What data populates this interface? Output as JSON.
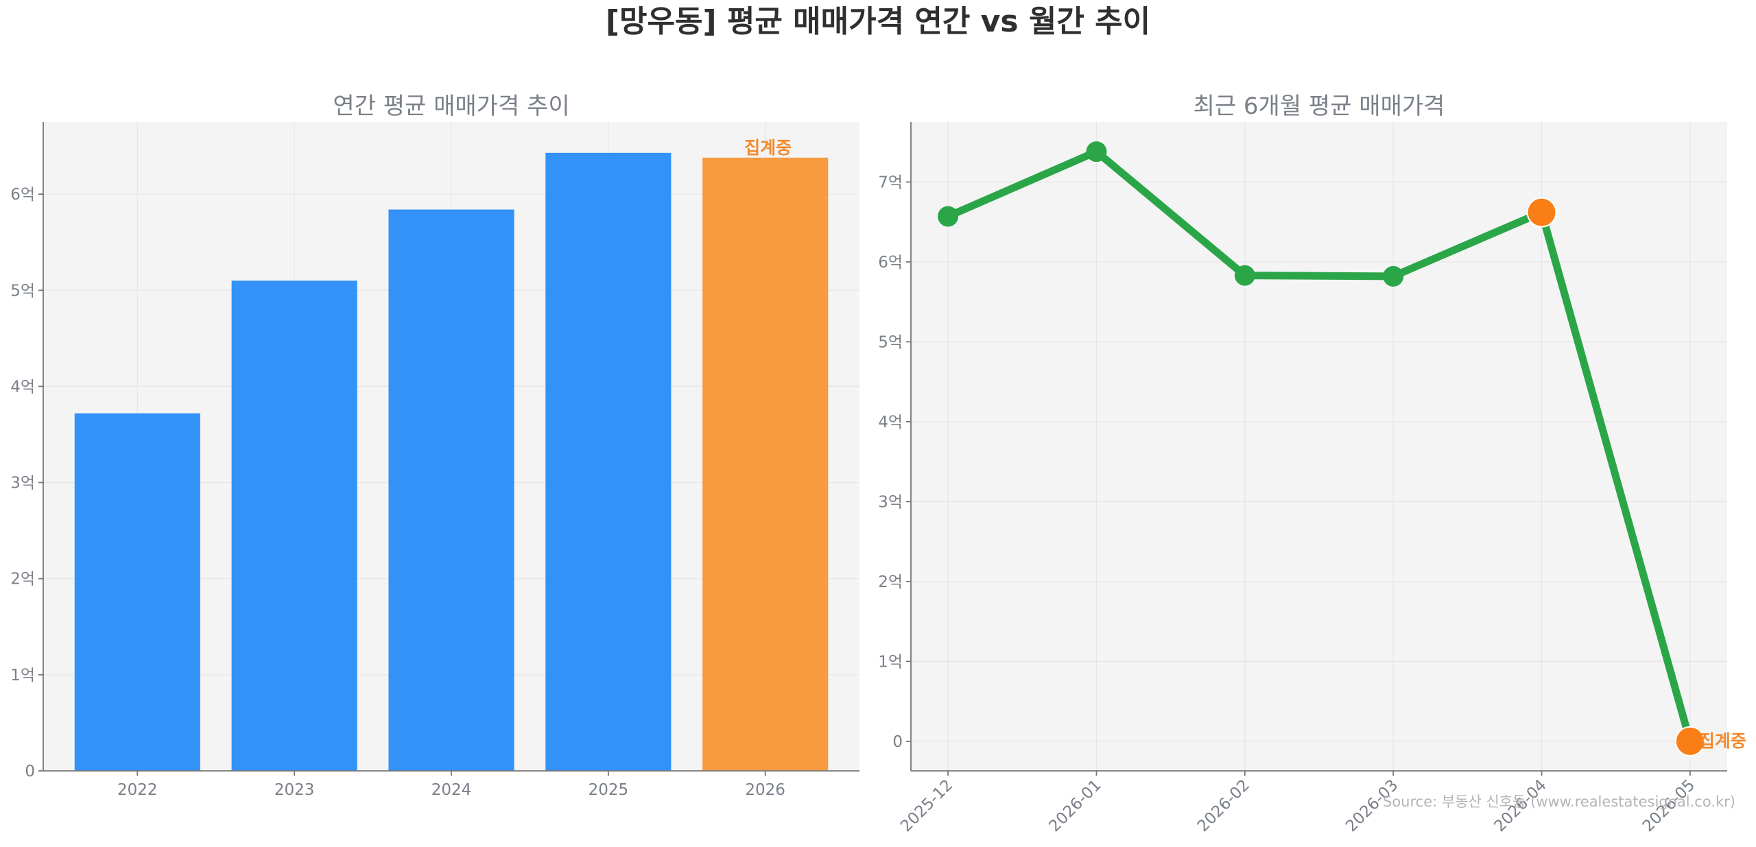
{
  "title": "[망우동] 평균 매매가격 연간 vs 월간 추이",
  "colors": {
    "bar": "#3392f8",
    "bar_partial": "#f89a40",
    "line": "#2aa648",
    "marker_partial": "#f97e16",
    "annotation": "#f28a2e",
    "panel_bg": "#f4f4f4"
  },
  "source": "Source: 부동산 신호등 (www.realestatesignal.co.kr)",
  "chart_data": [
    {
      "type": "bar",
      "title": "연간 평균 매매가격 추이",
      "categories": [
        "2022",
        "2023",
        "2024",
        "2025",
        "2026"
      ],
      "values": [
        3.72,
        5.1,
        5.84,
        6.43,
        6.38
      ],
      "unit": "억",
      "partial_index": 4,
      "annotation": "집계중",
      "yticks": [
        "0",
        "1억",
        "2억",
        "3억",
        "4억",
        "5억",
        "6억"
      ],
      "ylim": [
        0,
        6.75
      ],
      "grid": true
    },
    {
      "type": "line",
      "title": "최근 6개월 평균 매매가격",
      "categories": [
        "2025-12",
        "2026-01",
        "2026-02",
        "2026-03",
        "2026-04",
        "2026-05"
      ],
      "values": [
        6.57,
        7.38,
        5.83,
        5.82,
        6.62,
        0
      ],
      "unit": "억",
      "partial_indices": [
        4,
        5
      ],
      "annotation": "집계중",
      "yticks": [
        "0",
        "1억",
        "2억",
        "3억",
        "4억",
        "5억",
        "6억",
        "7억"
      ],
      "ylim": [
        -0.37,
        7.75
      ],
      "grid": true
    }
  ]
}
